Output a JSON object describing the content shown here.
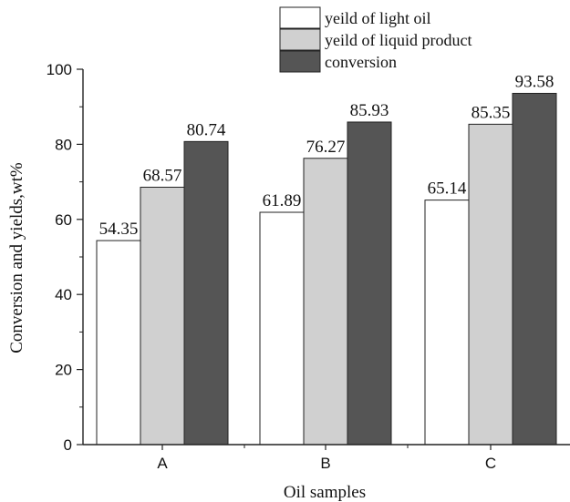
{
  "chart_data": {
    "type": "bar",
    "categories": [
      "A",
      "B",
      "C"
    ],
    "series": [
      {
        "name": "yeild of light oil",
        "values": [
          54.35,
          61.89,
          65.14
        ],
        "color": "#ffffff"
      },
      {
        "name": "yeild of liquid product",
        "values": [
          68.57,
          76.27,
          85.35
        ],
        "color": "#d0d0d0"
      },
      {
        "name": "conversion",
        "values": [
          80.74,
          85.93,
          93.58
        ],
        "color": "#555555"
      }
    ],
    "data_labels": [
      [
        "54.35",
        "68.57",
        "80.74"
      ],
      [
        "61.89",
        "76.27",
        "85.93"
      ],
      [
        "65.14",
        "85.35",
        "93.58"
      ]
    ],
    "xlabel": "Oil samples",
    "ylabel": "Conversion and yields,wt%",
    "ylim": [
      0,
      100
    ],
    "yticks": [
      0,
      20,
      40,
      60,
      80,
      100
    ],
    "ytick_labels": [
      "0",
      "20",
      "40",
      "60",
      "80",
      "100"
    ],
    "legend_position": "top",
    "grid": false
  }
}
